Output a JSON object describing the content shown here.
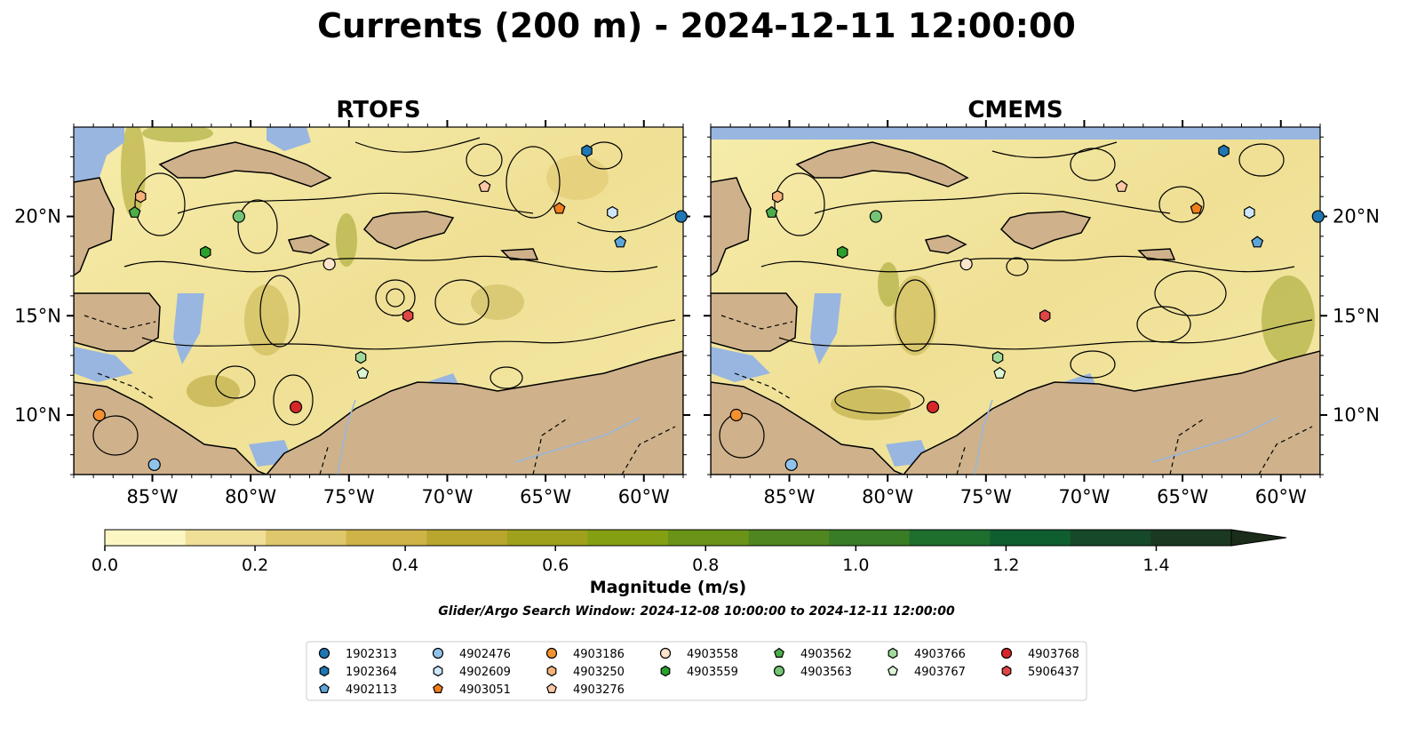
{
  "figure": {
    "title": "Currents (200 m) - 2024-12-11 12:00:00",
    "colorbar_label": "Magnitude (m/s)",
    "search_window": "Glider/Argo Search Window: 2024-12-08 10:00:00 to 2024-12-11 12:00:00"
  },
  "map": {
    "lon_range": [
      -89,
      -58
    ],
    "lat_range": [
      7,
      24.5
    ],
    "x_ticks": [
      {
        "lon": -85,
        "label": "85°W"
      },
      {
        "lon": -80,
        "label": "80°W"
      },
      {
        "lon": -75,
        "label": "75°W"
      },
      {
        "lon": -70,
        "label": "70°W"
      },
      {
        "lon": -65,
        "label": "65°W"
      },
      {
        "lon": -60,
        "label": "60°W"
      }
    ],
    "y_ticks": [
      {
        "lat": 20,
        "label": "20°N"
      },
      {
        "lat": 15,
        "label": "15°N"
      },
      {
        "lat": 10,
        "label": "10°N"
      }
    ],
    "colors": {
      "land": "#cfb28b",
      "ocean": "#98b6e0",
      "coast": "#000000",
      "streamline": "#000000"
    }
  },
  "panels": [
    {
      "title": "RTOFS"
    },
    {
      "title": "CMEMS"
    }
  ],
  "colorbar": {
    "min": 0.0,
    "max": 1.5,
    "extend": "max",
    "ticks": [
      {
        "value": 0.0,
        "label": "0.0"
      },
      {
        "value": 0.2,
        "label": "0.2"
      },
      {
        "value": 0.4,
        "label": "0.4"
      },
      {
        "value": 0.6,
        "label": "0.6"
      },
      {
        "value": 0.8,
        "label": "0.8"
      },
      {
        "value": 1.0,
        "label": "1.0"
      },
      {
        "value": 1.2,
        "label": "1.2"
      },
      {
        "value": 1.4,
        "label": "1.4"
      }
    ],
    "colors": [
      "#fcf6c3",
      "#f0df97",
      "#dfc76c",
      "#cfb347",
      "#b8a62e",
      "#9fa11c",
      "#84a012",
      "#6a9318",
      "#4f861f",
      "#397c26",
      "#1e6e2e",
      "#0f5e2f",
      "#16482a",
      "#1a3822",
      "#1b2c1a"
    ]
  },
  "legend": {
    "columns": [
      [
        {
          "id": "1902313",
          "color": "#1f77b4",
          "shape": "circle"
        },
        {
          "id": "1902364",
          "color": "#1f77b4",
          "shape": "hexagon"
        },
        {
          "id": "4902113",
          "color": "#5da5d9",
          "shape": "pentagon"
        }
      ],
      [
        {
          "id": "4902476",
          "color": "#8fc3ec",
          "shape": "circle"
        },
        {
          "id": "4902609",
          "color": "#cde6fb",
          "shape": "hexagon"
        },
        {
          "id": "4903051",
          "color": "#f07e1c",
          "shape": "pentagon"
        }
      ],
      [
        {
          "id": "4903186",
          "color": "#f5922f",
          "shape": "circle"
        },
        {
          "id": "4903250",
          "color": "#f7b27a",
          "shape": "hexagon"
        },
        {
          "id": "4903276",
          "color": "#fcc8a6",
          "shape": "pentagon"
        }
      ],
      [
        {
          "id": "4903558",
          "color": "#fde4cc",
          "shape": "circle"
        },
        {
          "id": "4903559",
          "color": "#2ca02c",
          "shape": "hexagon"
        }
      ],
      [
        {
          "id": "4903562",
          "color": "#4bae4b",
          "shape": "pentagon"
        },
        {
          "id": "4903563",
          "color": "#74c476",
          "shape": "circle"
        }
      ],
      [
        {
          "id": "4903766",
          "color": "#a1d99b",
          "shape": "hexagon"
        },
        {
          "id": "4903767",
          "color": "#dcf5d3",
          "shape": "pentagon"
        }
      ],
      [
        {
          "id": "4903768",
          "color": "#d62728",
          "shape": "circle"
        },
        {
          "id": "5906437",
          "color": "#e04646",
          "shape": "hexagon"
        }
      ]
    ]
  },
  "floats": [
    {
      "id": "1902313",
      "lon": -58.1,
      "lat": 20.0
    },
    {
      "id": "1902364",
      "lon": -62.9,
      "lat": 23.3
    },
    {
      "id": "4902113",
      "lon": -61.2,
      "lat": 18.7
    },
    {
      "id": "4902476",
      "lon": -84.9,
      "lat": 7.5
    },
    {
      "id": "4902609",
      "lon": -61.6,
      "lat": 20.2
    },
    {
      "id": "4903051",
      "lon": -64.3,
      "lat": 20.4
    },
    {
      "id": "4903186",
      "lon": -87.7,
      "lat": 10.0
    },
    {
      "id": "4903250",
      "lon": -85.6,
      "lat": 21.0
    },
    {
      "id": "4903276",
      "lon": -68.1,
      "lat": 21.5
    },
    {
      "id": "4903558",
      "lon": -76.0,
      "lat": 17.6
    },
    {
      "id": "4903559",
      "lon": -82.3,
      "lat": 18.2
    },
    {
      "id": "4903562",
      "lon": -85.9,
      "lat": 20.2
    },
    {
      "id": "4903563",
      "lon": -80.6,
      "lat": 20.0
    },
    {
      "id": "4903766",
      "lon": -74.4,
      "lat": 12.9
    },
    {
      "id": "4903767",
      "lon": -74.3,
      "lat": 12.1
    },
    {
      "id": "4903768",
      "lon": -77.7,
      "lat": 10.4
    },
    {
      "id": "5906437",
      "lon": -72.0,
      "lat": 15.0
    }
  ]
}
